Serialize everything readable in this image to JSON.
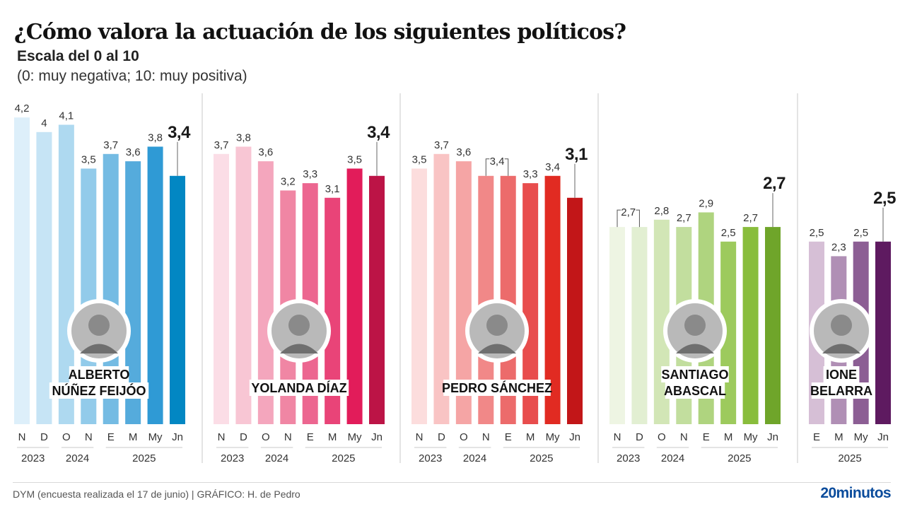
{
  "header": {
    "title": "¿Cómo valora la actuación de los siguientes políticos?",
    "subtitle": "Escala del 0 al 10",
    "note": "(0: muy negativa; 10: muy positiva)"
  },
  "footer": {
    "source": "DYM (encuesta realizada el 17 de junio)  |  GRÁFICO: H. de Pedro",
    "brand": "20minutos"
  },
  "chart_data": {
    "type": "bar",
    "title": "¿Cómo valora la actuación de los siguientes políticos?",
    "subtitle": "Escala del 0 al 10 (0: muy negativa; 10: muy positiva)",
    "ylim": [
      0,
      10
    ],
    "grid": false,
    "panels": [
      {
        "name": "ALBERTO NÚÑEZ FEIJÓO",
        "name_lines": [
          "ALBERTO",
          "NÚÑEZ FEIJÓO"
        ],
        "categories": [
          "N",
          "D",
          "O",
          "N",
          "E",
          "M",
          "My",
          "Jn"
        ],
        "labels": [
          "4,2",
          "4",
          "4,1",
          "3,5",
          "3,7",
          "3,6",
          "3,8",
          "3,4"
        ],
        "values": [
          4.2,
          4.0,
          4.1,
          3.5,
          3.7,
          3.6,
          3.8,
          3.4
        ],
        "years": [
          {
            "label": "2023",
            "span": [
              0,
              1
            ]
          },
          {
            "label": "2024",
            "span": [
              2,
              3
            ]
          },
          {
            "label": "2025",
            "span": [
              4,
              7
            ]
          }
        ],
        "colors": [
          "#ddeffa",
          "#c6e4f5",
          "#aed9f0",
          "#92cbea",
          "#74bbe3",
          "#55abdc",
          "#2f9ad5",
          "#0287c3"
        ],
        "brackets": []
      },
      {
        "name": "YOLANDA DÍAZ",
        "name_lines": [
          "YOLANDA DÍAZ"
        ],
        "categories": [
          "N",
          "D",
          "O",
          "N",
          "E",
          "M",
          "My",
          "Jn"
        ],
        "labels": [
          "3,7",
          "3,8",
          "3,6",
          "3,2",
          "3,3",
          "3,1",
          "3,5",
          "3,4"
        ],
        "values": [
          3.7,
          3.8,
          3.6,
          3.2,
          3.3,
          3.1,
          3.5,
          3.4
        ],
        "years": [
          {
            "label": "2023",
            "span": [
              0,
              1
            ]
          },
          {
            "label": "2024",
            "span": [
              2,
              3
            ]
          },
          {
            "label": "2025",
            "span": [
              4,
              7
            ]
          }
        ],
        "colors": [
          "#fbdde6",
          "#f8c6d4",
          "#f4a6bd",
          "#f086a4",
          "#ec6690",
          "#e94478",
          "#e21c5a",
          "#bc1446"
        ],
        "brackets": []
      },
      {
        "name": "PEDRO SÁNCHEZ",
        "name_lines": [
          "PEDRO SÁNCHEZ"
        ],
        "categories": [
          "N",
          "D",
          "O",
          "N",
          "E",
          "M",
          "My",
          "Jn"
        ],
        "labels": [
          "3,5",
          "3,7",
          "3,6",
          "3,4",
          "3,4",
          "3,3",
          "3,4",
          "3,1"
        ],
        "values": [
          3.5,
          3.7,
          3.6,
          3.4,
          3.4,
          3.3,
          3.4,
          3.1
        ],
        "years": [
          {
            "label": "2023",
            "span": [
              0,
              1
            ]
          },
          {
            "label": "2024",
            "span": [
              2,
              3
            ]
          },
          {
            "label": "2025",
            "span": [
              4,
              7
            ]
          }
        ],
        "colors": [
          "#fcdddd",
          "#f9c4c4",
          "#f5a5a5",
          "#f18888",
          "#ec6b6b",
          "#e84d4d",
          "#e12b22",
          "#c21618"
        ],
        "brackets": [
          {
            "from": 3,
            "to": 4,
            "label": "3,4"
          }
        ]
      },
      {
        "name": "SANTIAGO ABASCAL",
        "name_lines": [
          "SANTIAGO",
          "ABASCAL"
        ],
        "categories": [
          "N",
          "D",
          "O",
          "N",
          "E",
          "M",
          "My",
          "Jn"
        ],
        "labels": [
          "2,7",
          "2,7",
          "2,8",
          "2,7",
          "2,9",
          "2,5",
          "2,7",
          "2,7"
        ],
        "values": [
          2.7,
          2.7,
          2.8,
          2.7,
          2.9,
          2.5,
          2.7,
          2.7
        ],
        "years": [
          {
            "label": "2023",
            "span": [
              0,
              1
            ]
          },
          {
            "label": "2024",
            "span": [
              2,
              3
            ]
          },
          {
            "label": "2025",
            "span": [
              4,
              7
            ]
          }
        ],
        "colors": [
          "#eef5e3",
          "#e2efd2",
          "#d2e6b6",
          "#c2de9e",
          "#afd47f",
          "#9dca5d",
          "#89bd3c",
          "#6fa52a"
        ],
        "brackets": [
          {
            "from": 0,
            "to": 1,
            "label": "2,7"
          }
        ]
      },
      {
        "name": "IONE BELARRA",
        "name_lines": [
          "IONE",
          "BELARRA"
        ],
        "categories": [
          "E",
          "M",
          "My",
          "Jn"
        ],
        "labels": [
          "2,5",
          "2,3",
          "2,5",
          "2,5"
        ],
        "values": [
          2.5,
          2.3,
          2.5,
          2.5
        ],
        "years": [
          {
            "label": "2025",
            "span": [
              0,
              3
            ]
          }
        ],
        "colors": [
          "#d6bfd6",
          "#b08fb5",
          "#8c5e94",
          "#5e1a60"
        ],
        "brackets": []
      }
    ]
  }
}
